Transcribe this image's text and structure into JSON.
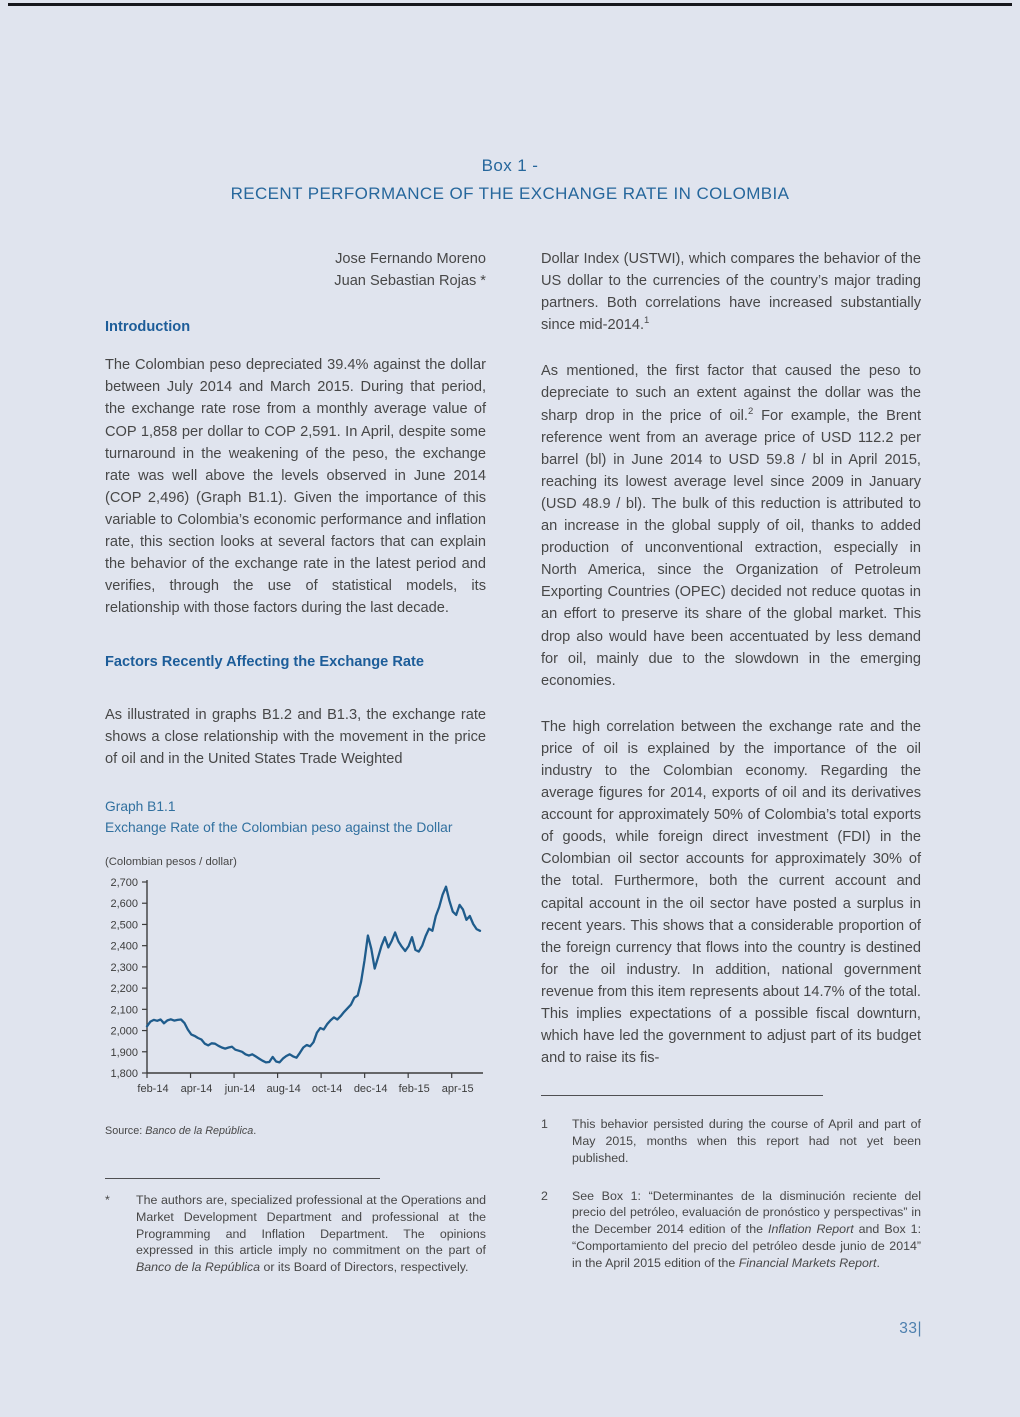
{
  "page": {
    "title_line1": "Box 1 -",
    "title_line2": "RECENT PERFORMANCE OF THE EXCHANGE RATE IN COLOMBIA",
    "page_number": "33|"
  },
  "authors": {
    "author1": "Jose Fernando Moreno",
    "author2": "Juan Sebastian Rojas *"
  },
  "left_column": {
    "intro_heading": "Introduction",
    "para1": "The Colombian peso depreciated 39.4% against the dollar between July 2014 and March 2015. During that period, the exchange rate rose from a monthly average value of COP 1,858 per dollar to COP 2,591. In April, despite some turnaround in the weakening of the peso, the exchange rate was well above the levels observed in June 2014 (COP 2,496) (Graph B1.1). Given the importance of this variable to Colombia’s economic performance and inflation rate, this section looks at several factors that can explain the behavior of the exchange rate in the latest period and verifies, through the use of statistical models, its relationship with those factors during the last decade.",
    "factors_heading": "Factors Recently Affecting the Exchange Rate",
    "para2": "As illustrated in graphs B1.2 and B1.3, the exchange rate shows a close relationship with the movement in the price of oil and in the United States Trade Weighted",
    "footnote_star": {
      "marker": "*",
      "seg1": "The authors are, specialized professional at the Operations and Market Development Department and professional at the Programming and Inflation Department. The opinions expressed in this article imply no commitment on the part of ",
      "seg2_italic": "Banco de la República",
      "seg3": " or its Board of Directors, respectively."
    }
  },
  "right_column": {
    "para1_text": "Dollar Index (USTWI), which compares the behavior of the US dollar to the currencies of the country’s major trading partners. Both correlations have increased substantially since mid-2014.",
    "para1_fnref": "1",
    "para2_before": "As mentioned, the first factor that caused the peso to depreciate to such an extent against the dollar was the sharp drop in the price of oil.",
    "para2_fnref": "2",
    "para2_after": " For example, the Brent reference went from an average price of USD 112.2 per barrel (bl) in June 2014 to USD 59.8 / bl in April 2015, reaching its lowest average level since 2009 in January (USD 48.9 / bl). The bulk of this reduction is attributed to an increase in the global supply of oil, thanks to added production of unconventional extraction, especially in North America, since the Organization of Petroleum Exporting Countries (OPEC) decided not reduce quotas in an effort to preserve its share of the global market. This drop also would have been accentuated by less demand for oil, mainly due to the slowdown in the emerging economies.",
    "para3": "The high correlation between the exchange rate and the price of oil is explained by the importance of the oil industry to the Colombian economy. Regarding the average figures for 2014, exports of oil and its derivatives account for approximately 50% of Colombia’s total exports of goods, while foreign direct investment (FDI) in the Colombian oil sector accounts for approximately 30% of the total. Furthermore, both the current account and capital account in the oil sector have posted a surplus in recent years. This shows that a considerable proportion of the foreign currency that flows into the country is destined for the oil industry. In addition, national government revenue from this item represents about 14.7% of the total. This implies expectations of a possible fiscal downturn, which have led the government to adjust part of its budget and to raise its fis-",
    "footnote1": {
      "marker": "1",
      "text": "This behavior persisted during the course of April and part of May 2015, months when this report had not yet been published."
    },
    "footnote2": {
      "marker": "2",
      "seg1": "See Box 1: “Determinantes de la disminución reciente del precio del petróleo, evaluación de pronóstico y perspectivas” in the December 2014 edition of the ",
      "seg2_italic": "Inflation Report",
      "seg3": " and Box 1: “Comportamiento del precio del petróleo desde junio de 2014” in the April 2015 edition of the ",
      "seg4_italic": "Financial Markets Report",
      "seg5": "."
    }
  },
  "graph": {
    "caption_line1": "Graph B1.1",
    "caption_line2": "Exchange Rate of the Colombian peso against the Dollar",
    "unit_label": "(Colombian pesos / dollar)",
    "source_label": "Source: ",
    "source_italic": "Banco de la República",
    "source_period": "."
  },
  "chart_data": {
    "type": "line",
    "title": "Graph B1.1",
    "subtitle": "Exchange Rate of the Colombian peso against the Dollar",
    "ylabel": "(Colombian pesos / dollar)",
    "ylim": [
      1800,
      2700
    ],
    "y_tick_values": [
      1800,
      1900,
      2000,
      2100,
      2200,
      2300,
      2400,
      2500,
      2600,
      2700
    ],
    "y_tick_labels": [
      "1,800",
      "1,900",
      "2,000",
      "2,100",
      "2,200",
      "2,300",
      "2,400",
      "2,500",
      "2,600",
      "2,700"
    ],
    "x_tick_labels": [
      "feb-14",
      "apr-14",
      "jun-14",
      "aug-14",
      "oct-14",
      "dec-14",
      "feb-15",
      "apr-15"
    ],
    "x_tick_months": [
      0,
      2,
      4,
      6,
      8,
      10,
      12,
      14
    ],
    "x_total_months": 15.3,
    "grid": false,
    "legend": "none",
    "line_color": "#1f5c8c",
    "axis_color": "#3c3c3c",
    "series": [
      {
        "name": "Exchange rate (COP per USD), daily",
        "values": [
          2020,
          2042,
          2050,
          2046,
          2052,
          2034,
          2048,
          2053,
          2047,
          2050,
          2052,
          2036,
          2005,
          1982,
          1975,
          1965,
          1958,
          1938,
          1930,
          1940,
          1938,
          1928,
          1920,
          1915,
          1920,
          1924,
          1910,
          1905,
          1900,
          1888,
          1882,
          1888,
          1878,
          1868,
          1858,
          1850,
          1852,
          1876,
          1854,
          1850,
          1868,
          1880,
          1888,
          1878,
          1872,
          1895,
          1920,
          1932,
          1926,
          1945,
          1990,
          2012,
          2005,
          2030,
          2048,
          2062,
          2052,
          2068,
          2088,
          2105,
          2122,
          2155,
          2165,
          2230,
          2330,
          2448,
          2385,
          2292,
          2345,
          2400,
          2440,
          2392,
          2422,
          2462,
          2420,
          2395,
          2375,
          2398,
          2440,
          2380,
          2372,
          2400,
          2445,
          2480,
          2470,
          2540,
          2582,
          2640,
          2678,
          2612,
          2560,
          2545,
          2592,
          2570,
          2522,
          2540,
          2502,
          2478,
          2470
        ]
      }
    ]
  }
}
